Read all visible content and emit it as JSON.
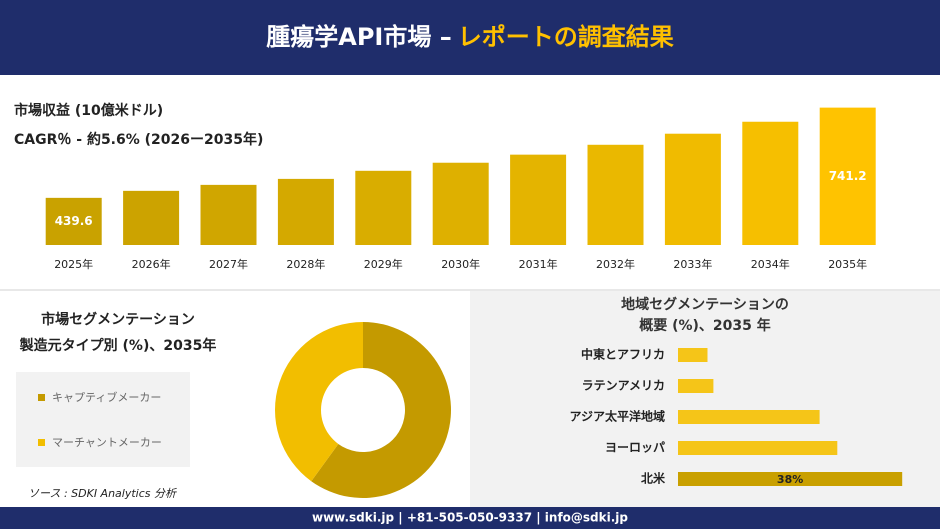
{
  "header": {
    "title": "腫瘍学API市場 –",
    "title_highlight": "レポートの調査結果"
  },
  "chart_data": [
    {
      "type": "bar",
      "title": "市場収益 (10億米ドル)",
      "subtitle": "CAGR％ - 約5.6% (2026ー2035年)",
      "categories": [
        "2025年",
        "2026年",
        "2027年",
        "2028年",
        "2029年",
        "2030年",
        "2031年",
        "2032年",
        "2033年",
        "2034年",
        "2035年"
      ],
      "values": [
        439.6,
        463,
        483,
        503,
        530,
        557,
        584,
        617,
        654,
        694,
        741.2
      ],
      "colors": [
        "#C9A200",
        "#CCA300",
        "#D0A600",
        "#D4A900",
        "#D9AD00",
        "#DEB000",
        "#E4B400",
        "#EAB800",
        "#F0BB00",
        "#F6BF00",
        "#FFC300"
      ],
      "ylim": [
        282,
        760
      ]
    },
    {
      "type": "donut",
      "title": "市場セグメンテーション",
      "subtitle": "製造元タイプ別 (%)、2035年",
      "categories": [
        "キャプティブメーカー",
        "マーチャントメーカー"
      ],
      "values": [
        60,
        40
      ],
      "colors": [
        "#C49A00",
        "#F2BE00"
      ]
    },
    {
      "type": "hbar",
      "title": "地域セグメンテーションの",
      "subtitle": "概要 (%)、2035 年",
      "categories": [
        "中東とアフリカ",
        "ラテンアメリカ",
        "アジア太平洋地域",
        "ヨーロッパ",
        "北米"
      ],
      "values": [
        5,
        6,
        24,
        27,
        38
      ],
      "value_labels": [
        null,
        null,
        null,
        null,
        "38%"
      ],
      "colors": [
        "#F5C518",
        "#F5C518",
        "#F5C518",
        "#F5C518",
        "#C9A000"
      ],
      "xlim": [
        0,
        40
      ]
    }
  ],
  "source": "ソース : SDKI Analytics 分析",
  "footer": "www.sdki.jp | +81-505-050-9337 | info@sdki.jp"
}
